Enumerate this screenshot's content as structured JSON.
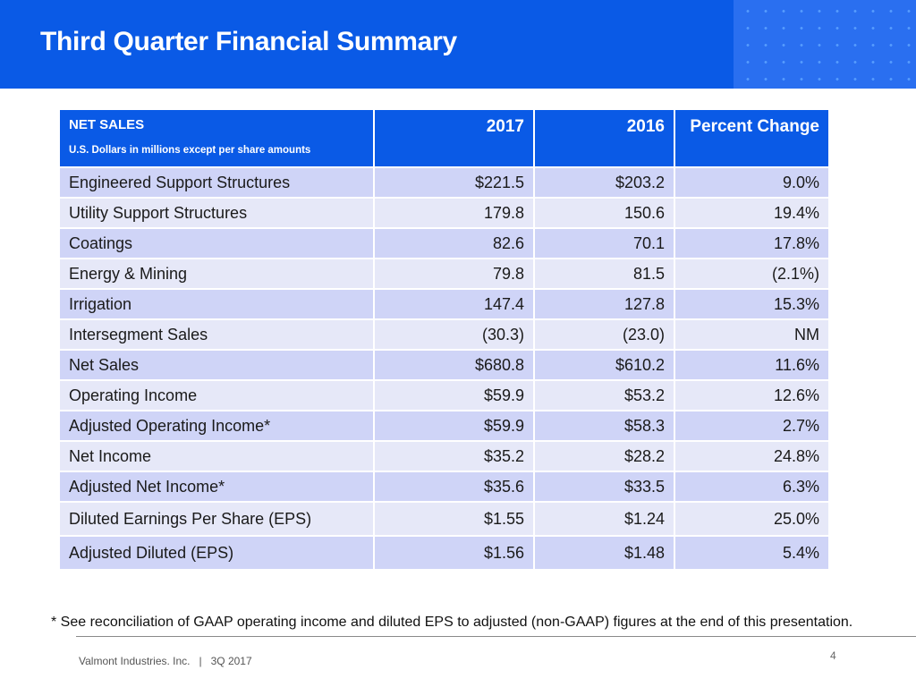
{
  "header": {
    "title": "Third Quarter Financial Summary",
    "accent_color": "#0a5ae6"
  },
  "table": {
    "header": {
      "title": "NET SALES",
      "subtitle": "U.S. Dollars in millions except per share amounts",
      "col_2017": "2017",
      "col_2016": "2016",
      "col_change": "Percent Change"
    },
    "rows": [
      {
        "label": "Engineered Support Structures",
        "v2017": "$221.5",
        "v2016": "$203.2",
        "change": "9.0%"
      },
      {
        "label": "Utility Support Structures",
        "v2017": "179.8",
        "v2016": "150.6",
        "change": "19.4%"
      },
      {
        "label": "Coatings",
        "v2017": "82.6",
        "v2016": "70.1",
        "change": "17.8%"
      },
      {
        "label": "Energy & Mining",
        "v2017": "79.8",
        "v2016": "81.5",
        "change": "(2.1%)"
      },
      {
        "label": "Irrigation",
        "v2017": "147.4",
        "v2016": "127.8",
        "change": "15.3%"
      },
      {
        "label": "Intersegment Sales",
        "v2017": "(30.3)",
        "v2016": "(23.0)",
        "change": "NM"
      },
      {
        "label": "Net Sales",
        "v2017": "$680.8",
        "v2016": "$610.2",
        "change": "11.6%"
      },
      {
        "label": "Operating Income",
        "v2017": "$59.9",
        "v2016": "$53.2",
        "change": "12.6%"
      },
      {
        "label": "Adjusted Operating Income*",
        "v2017": "$59.9",
        "v2016": "$58.3",
        "change": "2.7%"
      },
      {
        "label": "Net Income",
        "v2017": "$35.2",
        "v2016": "$28.2",
        "change": "24.8%"
      },
      {
        "label": "Adjusted Net Income*",
        "v2017": "$35.6",
        "v2016": "$33.5",
        "change": "6.3%"
      },
      {
        "label": "Diluted Earnings Per Share (EPS)",
        "v2017": "$1.55",
        "v2016": "$1.24",
        "change": "25.0%"
      },
      {
        "label": "Adjusted Diluted (EPS)",
        "v2017": "$1.56",
        "v2016": "$1.48",
        "change": "5.4%"
      }
    ]
  },
  "footnote": "* See reconciliation of GAAP operating income and diluted EPS to adjusted (non-GAAP) figures at the end of this presentation.",
  "footer": {
    "company": "Valmont Industries. Inc.   |   3Q 2017",
    "page_number": "4"
  }
}
